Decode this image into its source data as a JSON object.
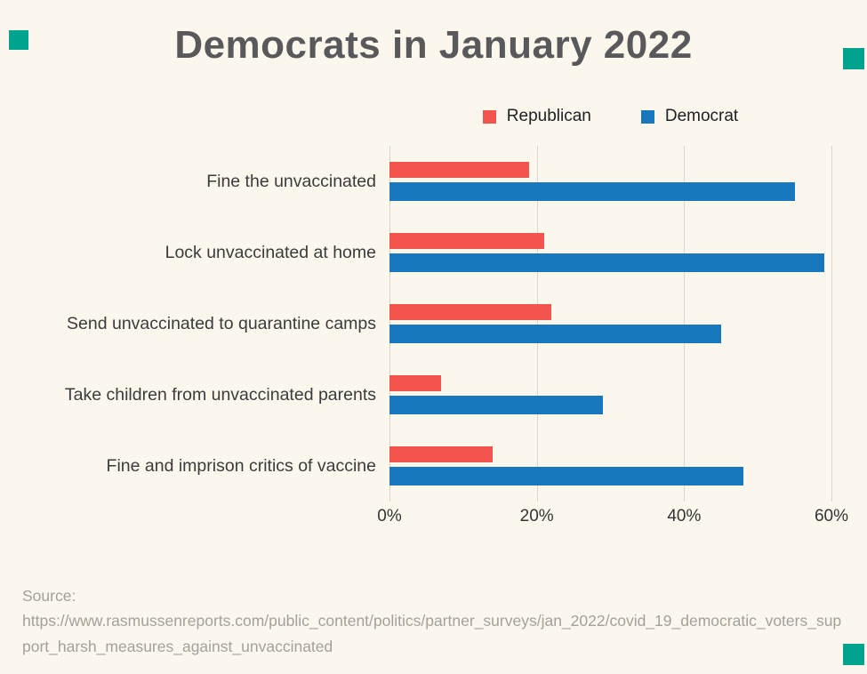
{
  "decor": {
    "corner_color": "#00A38D",
    "background_color": "#FBF7ED"
  },
  "chart_data": {
    "type": "bar",
    "orientation": "horizontal",
    "title": "Democrats in January 2022",
    "categories": [
      "Fine the unvaccinated",
      "Lock unvaccinated at home",
      "Send unvaccinated to quarantine camps",
      "Take children from unvaccinated parents",
      "Fine and imprison critics of vaccine"
    ],
    "series": [
      {
        "name": "Republican",
        "color": "#F4544E",
        "values": [
          19,
          21,
          22,
          7,
          14
        ]
      },
      {
        "name": "Democrat",
        "color": "#1877BD",
        "values": [
          55,
          59,
          45,
          29,
          48
        ]
      }
    ],
    "x_ticks": [
      {
        "value": 0,
        "label": "0%"
      },
      {
        "value": 20,
        "label": "20%"
      },
      {
        "value": 40,
        "label": "40%"
      },
      {
        "value": 60,
        "label": "60%"
      }
    ],
    "xlim": [
      0,
      60
    ],
    "grid": "vertical",
    "legend_position": "top"
  },
  "source": {
    "label": "Source:",
    "url": "https://www.rasmussenreports.com/public_content/politics/partner_surveys/jan_2022/covid_19_democratic_voters_support_harsh_measures_against_unvaccinated"
  }
}
